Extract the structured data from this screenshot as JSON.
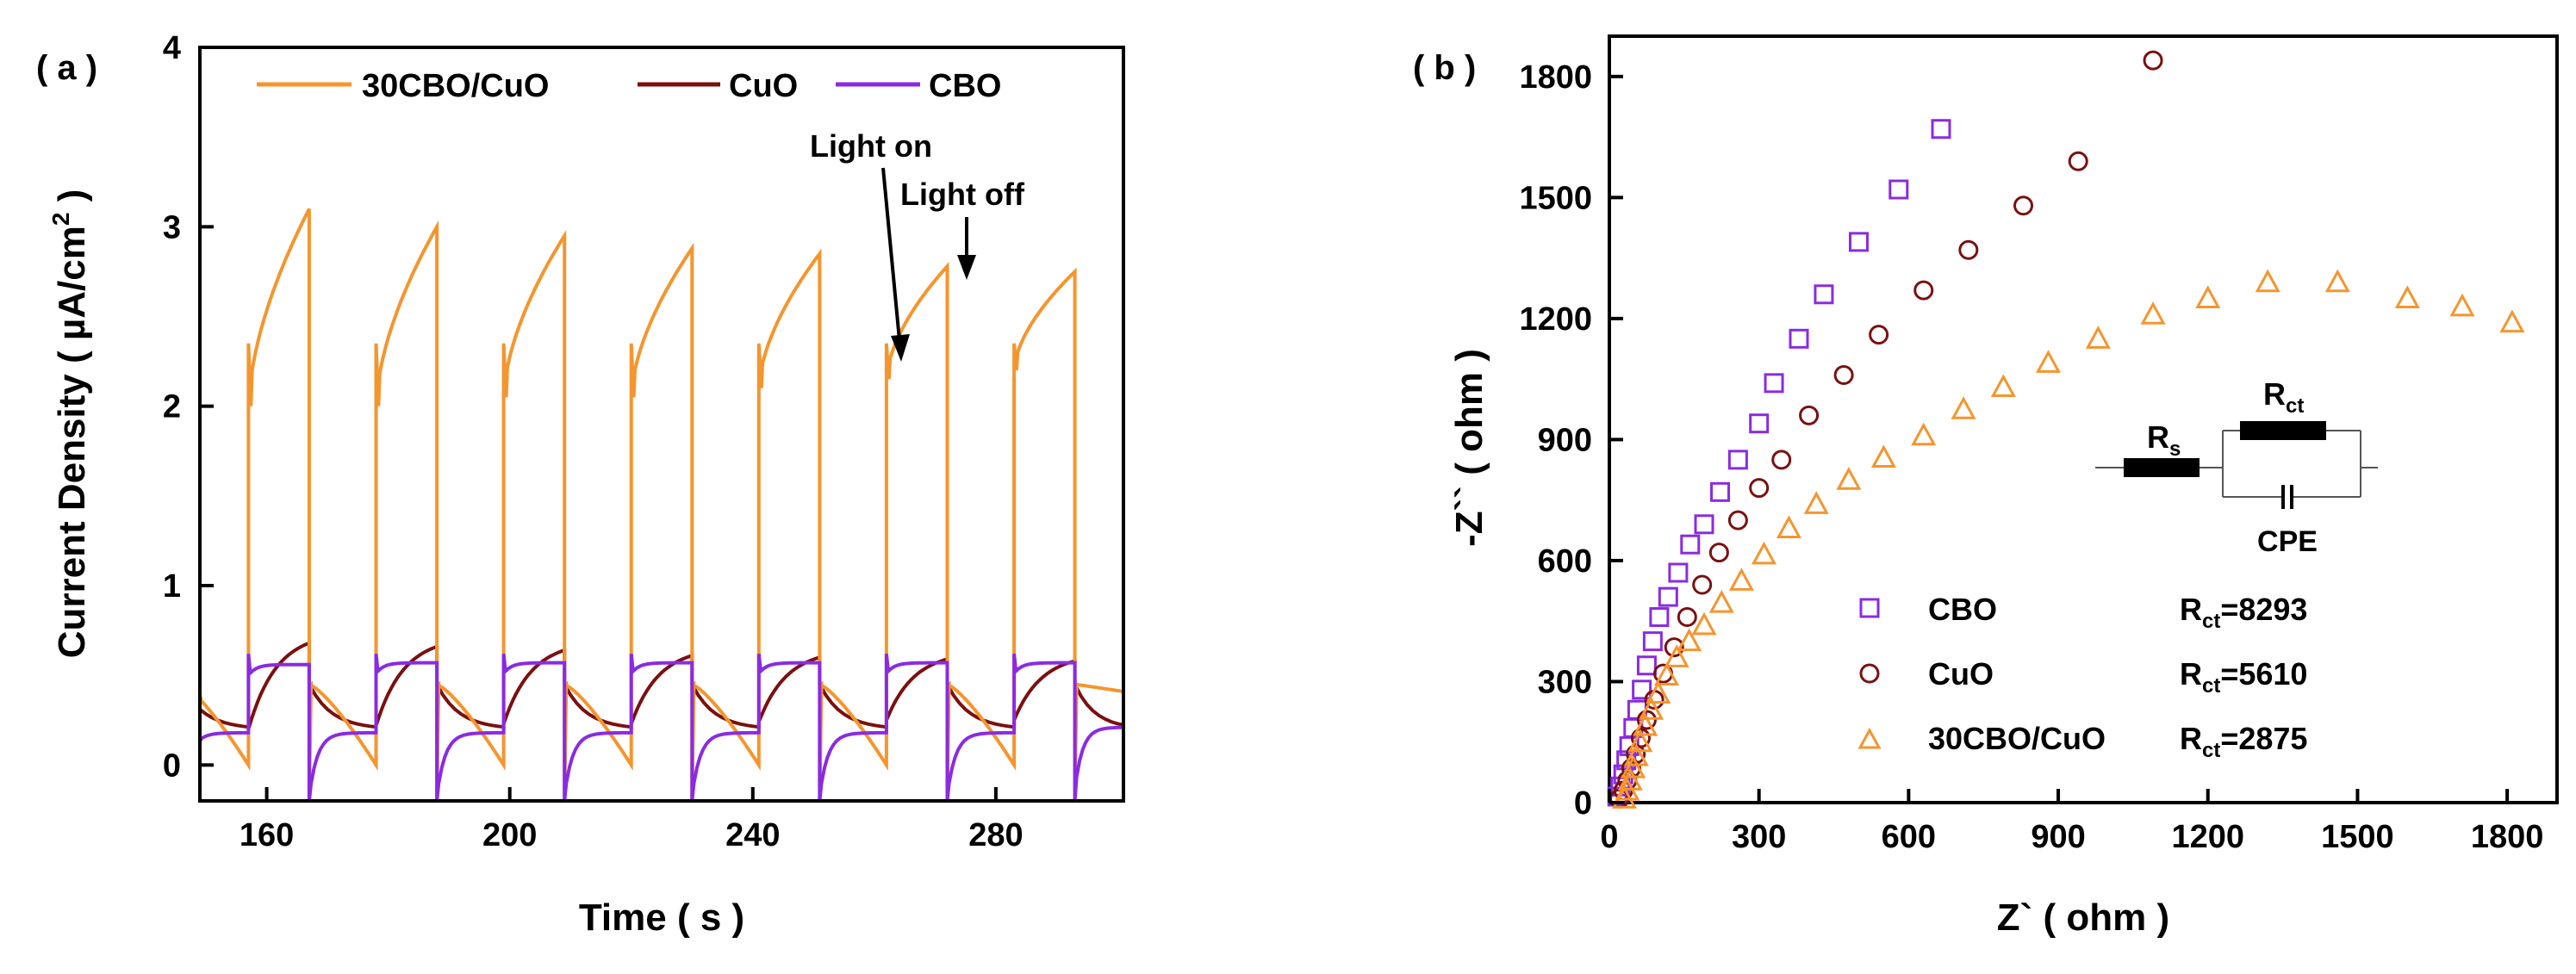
{
  "colors": {
    "orange": "#f5952e",
    "dark_red": "#7a1010",
    "purple": "#8a2be2",
    "black": "#000000"
  },
  "chart_data": [
    {
      "type": "line",
      "panel_label": "( a )",
      "xlabel": "Time ( s )",
      "ylabel": "Current Density ( µA/cm² )",
      "ylabel_main": "Current Density ( µA/cm",
      "ylabel_sup": "2",
      "ylabel_end": " )",
      "xlim": [
        149,
        301
      ],
      "ylim": [
        -0.2,
        4
      ],
      "xticks": [
        160,
        200,
        240,
        280
      ],
      "xtick_labels": [
        "160",
        "200",
        "240",
        "280"
      ],
      "yticks": [
        0,
        1,
        2,
        3,
        4
      ],
      "ytick_labels": [
        "0",
        "1",
        "2",
        "3",
        "4"
      ],
      "light_on_times": [
        157,
        178,
        199,
        220,
        241,
        262,
        283
      ],
      "light_off_times": [
        167,
        188,
        209,
        230,
        251,
        272,
        293
      ],
      "series": [
        {
          "name": "30CBO/CuO",
          "color": "#f5952e",
          "on_start": [
            2.0,
            2.0,
            2.05,
            2.05,
            2.1,
            2.15,
            2.2
          ],
          "on_end": [
            3.1,
            3.0,
            2.95,
            2.88,
            2.85,
            2.78,
            2.75
          ],
          "spike": 2.35,
          "dark_start": 0.45,
          "dark_end": 0.0
        },
        {
          "name": "CuO",
          "color": "#7a1010",
          "on_start": [
            0.2,
            0.22,
            0.23,
            0.23,
            0.24,
            0.25,
            0.25
          ],
          "on_end": [
            0.68,
            0.66,
            0.64,
            0.61,
            0.6,
            0.59,
            0.58
          ],
          "dark_start": 0.45,
          "dark_end": 0.2
        },
        {
          "name": "CBO",
          "color": "#8a2be2",
          "on_level": [
            0.56,
            0.57,
            0.57,
            0.57,
            0.57,
            0.57,
            0.57
          ],
          "spike": 0.62,
          "dark_level": 0.18
        }
      ],
      "legend": [
        "30CBO/CuO",
        "CuO",
        "CBO"
      ],
      "annotations": [
        {
          "text": "Light on",
          "x": 262,
          "y": 2.2
        },
        {
          "text": "Light off",
          "x": 272,
          "y": 2.75
        }
      ]
    },
    {
      "type": "scatter",
      "panel_label": "( b )",
      "xlabel": "Z` ( ohm )",
      "ylabel": "-Z`` ( ohm )",
      "xlim": [
        0,
        1900
      ],
      "ylim": [
        0,
        1900
      ],
      "xticks": [
        0,
        300,
        600,
        900,
        1200,
        1500,
        1800
      ],
      "xtick_labels": [
        "0",
        "300",
        "600",
        "900",
        "1200",
        "1500",
        "1800"
      ],
      "yticks": [
        0,
        300,
        600,
        900,
        1200,
        1500,
        1800
      ],
      "ytick_labels": [
        "0",
        "300",
        "600",
        "900",
        "1200",
        "1500",
        "1800"
      ],
      "series": [
        {
          "name": "CBO",
          "marker": "square",
          "color": "#8a2be2",
          "rct_value": "8293",
          "x": [
            16,
            22,
            28,
            34,
            40,
            48,
            56,
            65,
            75,
            87,
            100,
            118,
            138,
            162,
            190,
            222,
            258,
            300,
            330,
            380,
            430,
            500,
            580,
            665
          ],
          "y": [
            15,
            40,
            70,
            105,
            140,
            185,
            230,
            280,
            340,
            400,
            460,
            510,
            570,
            640,
            690,
            770,
            850,
            940,
            1040,
            1150,
            1260,
            1390,
            1520,
            1670
          ]
        },
        {
          "name": "CuO",
          "marker": "circle",
          "color": "#7a1010",
          "rct_value": "5610",
          "x": [
            20,
            28,
            36,
            44,
            53,
            63,
            75,
            90,
            108,
            130,
            156,
            186,
            220,
            258,
            300,
            345,
            400,
            470,
            540,
            630,
            720,
            830,
            940,
            1090
          ],
          "y": [
            10,
            30,
            55,
            85,
            120,
            160,
            205,
            255,
            320,
            385,
            460,
            540,
            620,
            700,
            780,
            850,
            960,
            1060,
            1160,
            1270,
            1370,
            1480,
            1590,
            1840
          ]
        },
        {
          "name": "30CBO/CuO",
          "marker": "triangle",
          "color": "#f5952e",
          "rct_value": "2875",
          "x": [
            30,
            36,
            42,
            48,
            54,
            62,
            72,
            84,
            98,
            115,
            135,
            160,
            190,
            225,
            265,
            310,
            360,
            415,
            480,
            550,
            630,
            710,
            790,
            880,
            980,
            1090,
            1200,
            1320,
            1460,
            1600,
            1710,
            1810
          ],
          "y": [
            10,
            30,
            55,
            85,
            115,
            150,
            190,
            230,
            270,
            315,
            360,
            400,
            440,
            495,
            550,
            615,
            680,
            740,
            800,
            855,
            910,
            975,
            1030,
            1090,
            1150,
            1210,
            1250,
            1290,
            1290,
            1250,
            1230,
            1190
          ]
        }
      ],
      "legend": [
        {
          "label": "CBO",
          "rct": "R_ct=8293"
        },
        {
          "label": "CuO",
          "rct": "R_ct=5610"
        },
        {
          "label": "30CBO/CuO",
          "rct": "R_ct=2875"
        }
      ],
      "circuit": {
        "rs_main": "R",
        "rs_sub": "s",
        "rct_main": "R",
        "rct_sub": "ct",
        "cpe": "CPE"
      }
    }
  ],
  "legend_b": {
    "cbo": "CBO",
    "cuo": "CuO",
    "mix": "30CBO/CuO",
    "r_main": "R",
    "r_sub": "ct",
    "cbo_val": "=8293",
    "cuo_val": "=5610",
    "mix_val": "=2875"
  }
}
